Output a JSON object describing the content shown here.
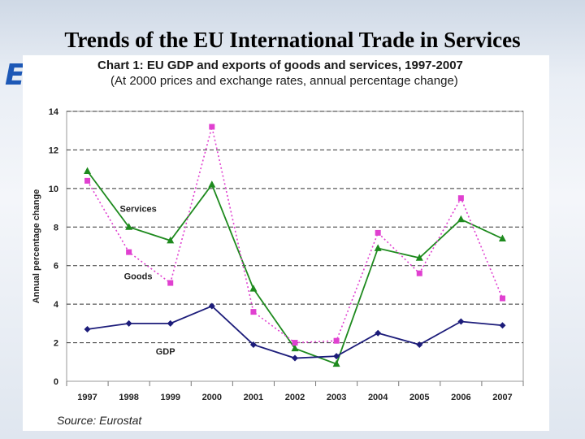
{
  "slide": {
    "title": "Trends of the EU International Trade in Services",
    "logo_text": "ESF"
  },
  "chart_data": {
    "type": "line",
    "title": "Chart 1: EU GDP and exports of goods and services, 1997-2007",
    "subtitle": "(At 2000 prices and exchange rates, annual percentage change)",
    "xlabel": "",
    "ylabel": "Annual percentage change",
    "categories": [
      "1997",
      "1998",
      "1999",
      "2000",
      "2001",
      "2002",
      "2003",
      "2004",
      "2005",
      "2006",
      "2007"
    ],
    "ylim": [
      0,
      14
    ],
    "yticks": [
      0,
      2,
      4,
      6,
      8,
      10,
      12,
      14
    ],
    "grid": "horizontal dashed",
    "series": [
      {
        "name": "Services",
        "values": [
          10.9,
          8.0,
          7.3,
          10.2,
          4.8,
          1.7,
          0.9,
          6.9,
          6.4,
          8.4,
          7.4
        ],
        "color": "#1e8a1e",
        "marker": "triangle",
        "style": "solid"
      },
      {
        "name": "Goods",
        "values": [
          10.4,
          6.7,
          5.1,
          13.2,
          3.6,
          2.0,
          2.1,
          7.7,
          5.6,
          9.5,
          4.3
        ],
        "color": "#e040d0",
        "marker": "square",
        "style": "dotted"
      },
      {
        "name": "GDP",
        "values": [
          2.7,
          3.0,
          3.0,
          3.9,
          1.9,
          1.2,
          1.3,
          2.5,
          1.9,
          3.1,
          2.9
        ],
        "color": "#1c1c7a",
        "marker": "diamond",
        "style": "solid"
      }
    ],
    "source": "Source: Eurostat"
  }
}
